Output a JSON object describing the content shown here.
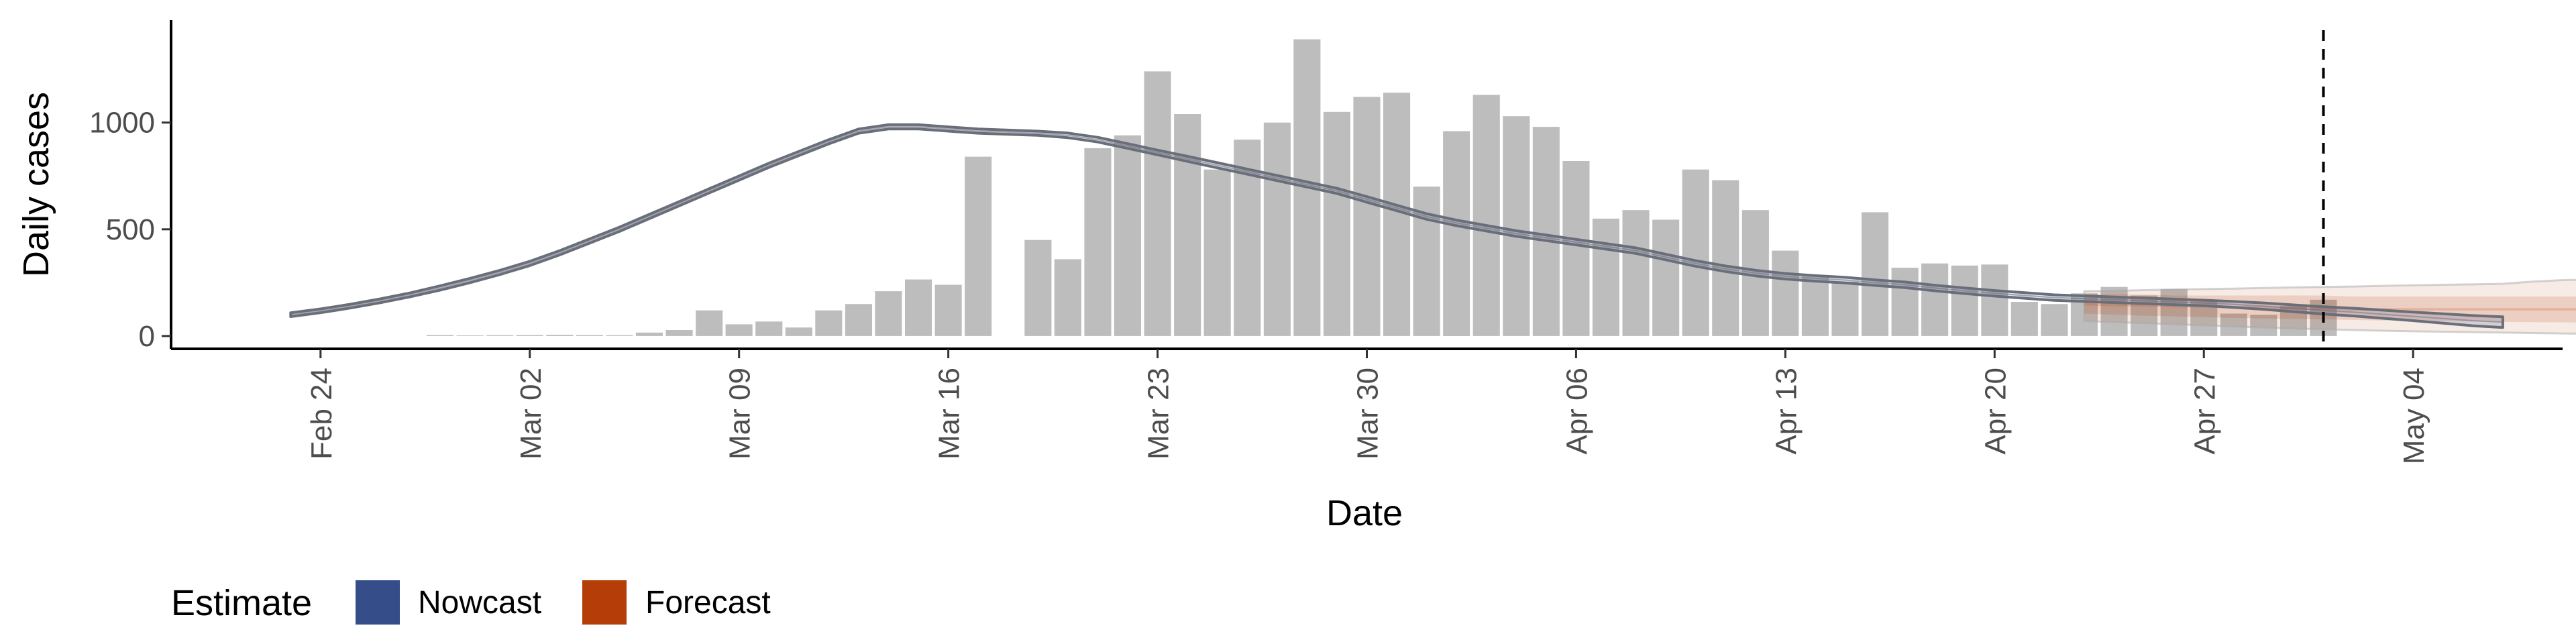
{
  "chart_data": {
    "type": "bar",
    "xlabel": "Date",
    "ylabel": "Daily cases",
    "ylim": [
      -60,
      1480
    ],
    "xlim": [
      "2020-02-19",
      "2020-05-09"
    ],
    "yticks": [
      0,
      500,
      1000
    ],
    "xticks": [
      {
        "date": "2020-02-24",
        "label": "Feb 24"
      },
      {
        "date": "2020-03-02",
        "label": "Mar 02"
      },
      {
        "date": "2020-03-09",
        "label": "Mar 09"
      },
      {
        "date": "2020-03-16",
        "label": "Mar 16"
      },
      {
        "date": "2020-03-23",
        "label": "Mar 23"
      },
      {
        "date": "2020-03-30",
        "label": "Mar 30"
      },
      {
        "date": "2020-04-06",
        "label": "Apr 06"
      },
      {
        "date": "2020-04-13",
        "label": "Apr 13"
      },
      {
        "date": "2020-04-20",
        "label": "Apr 20"
      },
      {
        "date": "2020-04-27",
        "label": "Apr 27"
      },
      {
        "date": "2020-05-04",
        "label": "May 04"
      }
    ],
    "cases": {
      "start_date": "2020-02-28",
      "values": [
        5,
        3,
        4,
        5,
        6,
        5,
        4,
        16,
        28,
        120,
        55,
        68,
        40,
        120,
        150,
        210,
        265,
        240,
        840,
        0,
        450,
        360,
        880,
        940,
        1240,
        1040,
        780,
        920,
        1000,
        1390,
        1050,
        1120,
        1140,
        700,
        960,
        1130,
        1030,
        980,
        820,
        550,
        590,
        545,
        780,
        730,
        590,
        400,
        280,
        255,
        580,
        320,
        340,
        330,
        335,
        160,
        150,
        200,
        230,
        190,
        220,
        165,
        105,
        100,
        140,
        170
      ],
      "color": "#bdbdbd"
    },
    "nowcast": {
      "start_date": "2020-02-23",
      "median": [
        100,
        118,
        140,
        165,
        193,
        225,
        260,
        298,
        340,
        390,
        445,
        500,
        560,
        620,
        680,
        740,
        800,
        855,
        910,
        960,
        980,
        980,
        970,
        960,
        955,
        950,
        940,
        920,
        890,
        860,
        830,
        800,
        770,
        740,
        710,
        680,
        640,
        600,
        560,
        530,
        505,
        480,
        460,
        440,
        420,
        400,
        370,
        340,
        315,
        295,
        280,
        270,
        262,
        250,
        240,
        225,
        212,
        200,
        190,
        180,
        175,
        170,
        165,
        160,
        155,
        148,
        140,
        130,
        120,
        112,
        102,
        92,
        82,
        72,
        65
      ],
      "half_width": [
        9,
        9,
        9,
        9,
        9,
        10,
        10,
        10,
        10,
        10,
        10,
        10,
        10,
        10,
        10,
        10,
        10,
        10,
        10,
        10,
        10,
        10,
        10,
        10,
        10,
        10,
        11,
        11,
        11,
        11,
        12,
        12,
        12,
        12,
        12,
        12,
        13,
        13,
        13,
        13,
        13,
        13,
        13,
        13,
        13,
        13,
        13,
        13,
        13,
        13,
        13,
        13,
        13,
        13,
        13,
        13,
        13,
        13,
        13,
        13,
        13,
        13,
        13,
        13,
        13,
        14,
        15,
        16,
        17,
        18,
        19,
        20,
        22,
        24,
        25
      ],
      "color": "#354e89"
    },
    "forecast": {
      "start_date": "2020-04-23",
      "median": [
        150,
        145,
        145,
        140,
        140,
        135,
        135,
        130,
        130,
        125,
        125,
        125,
        125,
        125,
        125,
        125,
        125,
        125,
        125,
        125
      ],
      "inner_lo": [
        105,
        100,
        95,
        92,
        88,
        85,
        82,
        80,
        78,
        75,
        73,
        72,
        70,
        68,
        66,
        65,
        64,
        63,
        62,
        60
      ],
      "inner_hi": [
        195,
        195,
        195,
        190,
        190,
        190,
        190,
        190,
        190,
        185,
        185,
        185,
        185,
        185,
        185,
        185,
        185,
        185,
        185,
        185
      ],
      "outer_lo": [
        70,
        65,
        60,
        55,
        50,
        45,
        40,
        35,
        32,
        28,
        25,
        22,
        20,
        18,
        16,
        14,
        12,
        10,
        8,
        5
      ],
      "outer_hi": [
        210,
        212,
        215,
        218,
        220,
        222,
        225,
        228,
        230,
        232,
        235,
        238,
        240,
        242,
        245,
        255,
        262,
        265,
        260,
        268
      ],
      "color": "#b53d08"
    },
    "vline": {
      "date": "2020-05-01",
      "style": "dashed"
    },
    "legend": {
      "title": "Estimate",
      "position": "bottom-left",
      "entries": [
        {
          "label": "Nowcast",
          "color": "#354e89"
        },
        {
          "label": "Forecast",
          "color": "#b53d08"
        }
      ]
    }
  }
}
